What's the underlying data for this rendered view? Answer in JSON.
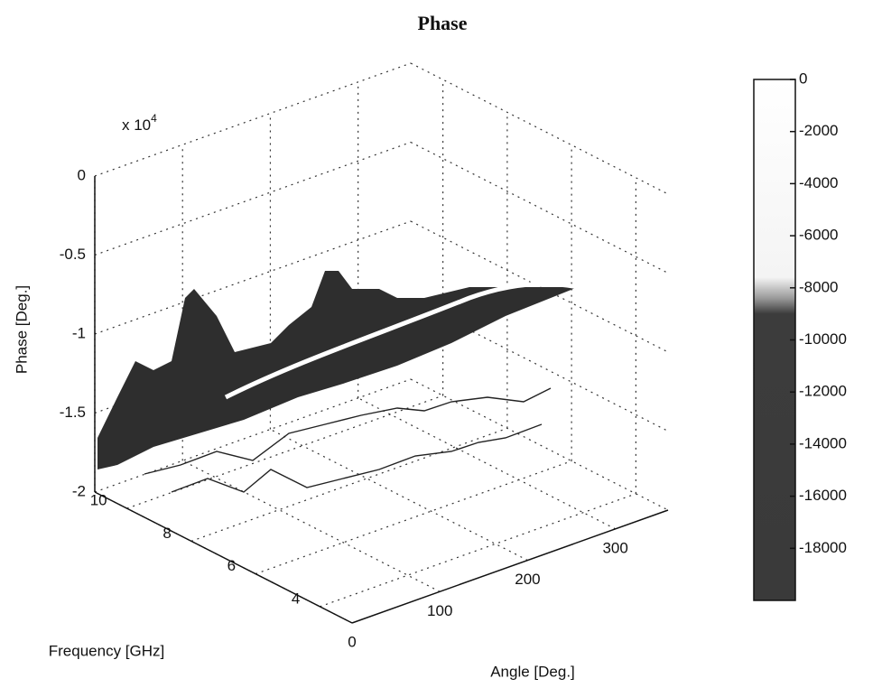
{
  "chart_data": {
    "type": "surface3d",
    "title": "Phase",
    "xlabel": "Angle [Deg.]",
    "ylabel": "Frequency [GHz]",
    "zlabel": "Phase [Deg.]",
    "zscale_label": "x 10",
    "zscale_exponent": "4",
    "xlim": [
      0,
      360
    ],
    "xticks": [
      0,
      100,
      200,
      300
    ],
    "ylim": [
      3,
      11
    ],
    "yticks": [
      4,
      6,
      8,
      10
    ],
    "zlim": [
      -20000,
      0
    ],
    "zticks": [
      {
        "value": -20000,
        "label": "-2"
      },
      {
        "value": -15000,
        "label": "-1.5"
      },
      {
        "value": -10000,
        "label": "-1"
      },
      {
        "value": -5000,
        "label": "-0.5"
      },
      {
        "value": 0,
        "label": "0"
      }
    ],
    "grid": true,
    "colorbar": {
      "lim": [
        -20000,
        0
      ],
      "ticks": [
        0,
        -2000,
        -4000,
        -6000,
        -8000,
        -10000,
        -12000,
        -14000,
        -16000,
        -18000
      ]
    }
  }
}
